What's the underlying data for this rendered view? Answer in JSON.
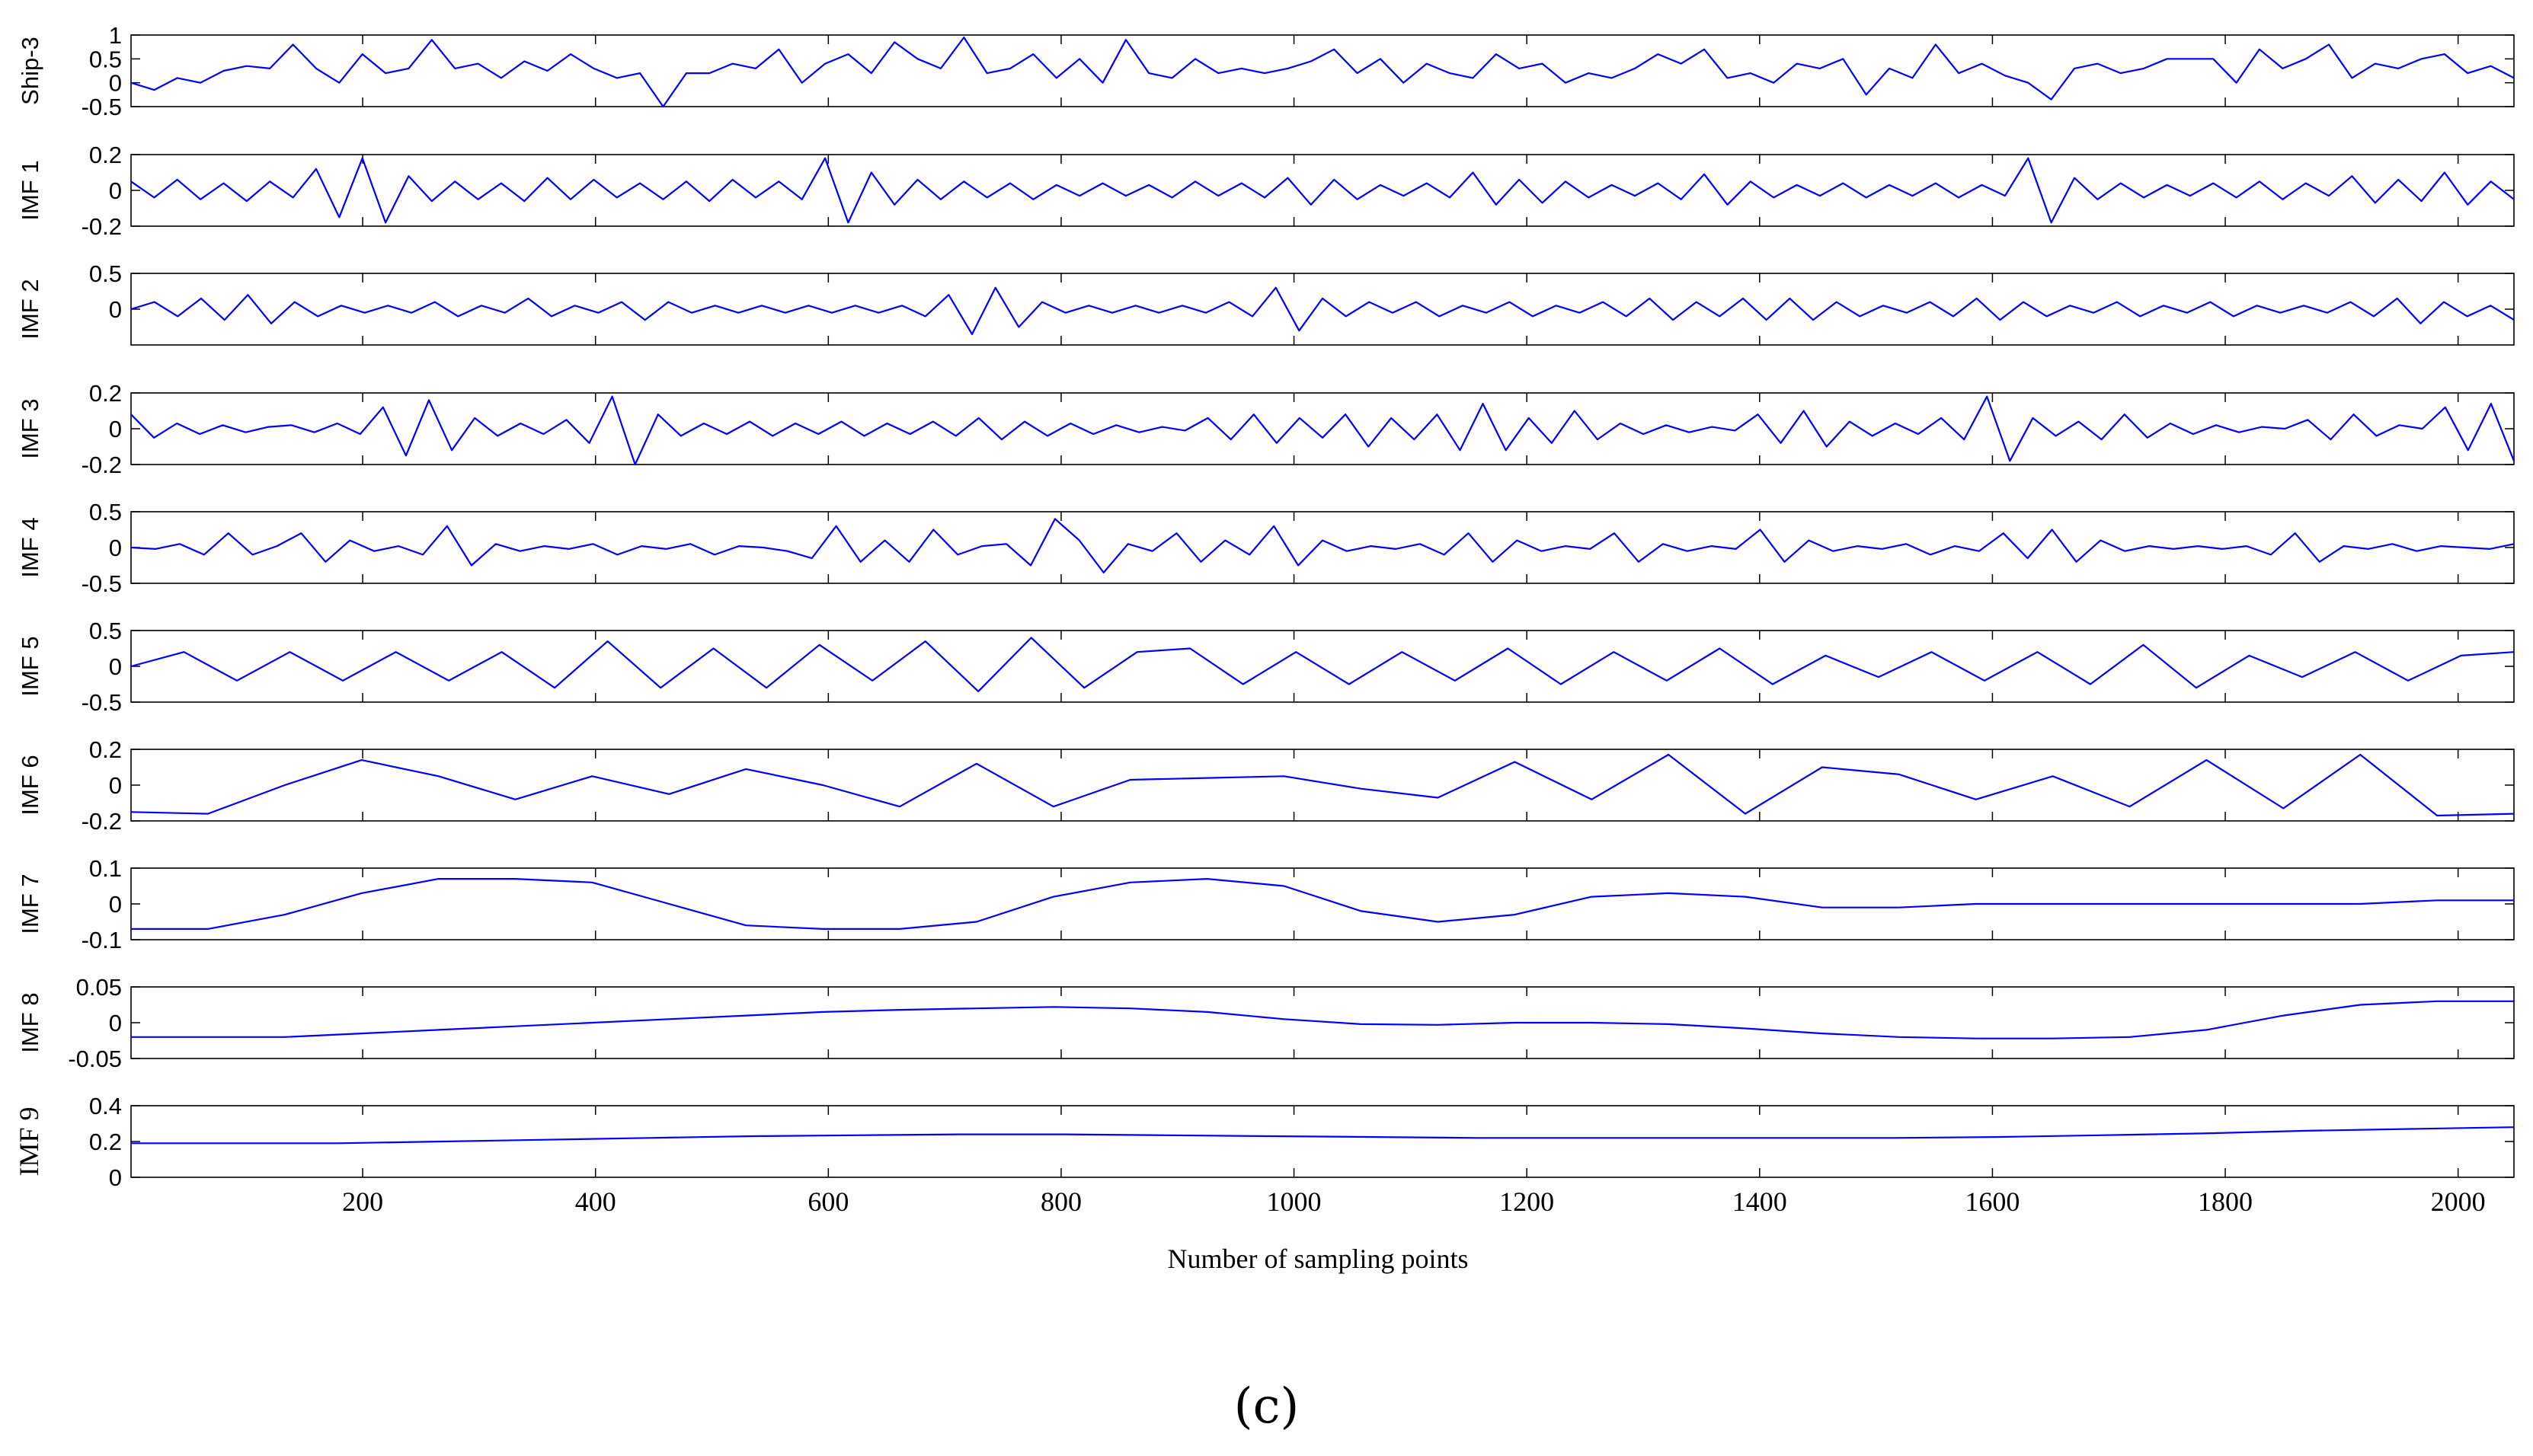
{
  "caption": "(c)",
  "chart_data": {
    "type": "line",
    "xlabel": "Number of sampling points",
    "xlim": [
      1,
      2048
    ],
    "x_ticks": [
      200,
      400,
      600,
      800,
      1000,
      1200,
      1400,
      1600,
      1800,
      2000
    ],
    "line_color": "#0000ff",
    "grid": false,
    "panels": [
      {
        "ylabel": "Ship-3",
        "ylim": [
          -0.5,
          1
        ],
        "yticks": [
          "1",
          "0.5",
          "0",
          "-0.5"
        ],
        "ytick_values": [
          1,
          0.5,
          0,
          -0.5
        ],
        "values": [
          0.0,
          -0.15,
          0.1,
          0.0,
          0.25,
          0.35,
          0.3,
          0.8,
          0.3,
          0.0,
          0.6,
          0.2,
          0.3,
          0.9,
          0.3,
          0.4,
          0.1,
          0.45,
          0.25,
          0.6,
          0.3,
          0.1,
          0.2,
          -0.55,
          0.2,
          0.2,
          0.4,
          0.3,
          0.7,
          0.0,
          0.4,
          0.6,
          0.2,
          0.85,
          0.5,
          0.3,
          0.95,
          0.2,
          0.3,
          0.6,
          0.1,
          0.5,
          0.0,
          0.9,
          0.2,
          0.1,
          0.5,
          0.2,
          0.3,
          0.2,
          0.3,
          0.45,
          0.7,
          0.2,
          0.5,
          0.0,
          0.4,
          0.2,
          0.1,
          0.6,
          0.3,
          0.4,
          0.0,
          0.2,
          0.1,
          0.3,
          0.6,
          0.4,
          0.7,
          0.1,
          0.2,
          0.0,
          0.4,
          0.3,
          0.5,
          -0.25,
          0.3,
          0.1,
          0.8,
          0.2,
          0.4,
          0.15,
          0.0,
          -0.35,
          0.3,
          0.4,
          0.2,
          0.3,
          0.5,
          0.5,
          0.5,
          0.0,
          0.7,
          0.3,
          0.5,
          0.8,
          0.1,
          0.4,
          0.3,
          0.5,
          0.6,
          0.2,
          0.35,
          0.1
        ]
      },
      {
        "ylabel": "IMF 1",
        "ylim": [
          -0.2,
          0.2
        ],
        "yticks": [
          "0.2",
          "0",
          "-0.2"
        ],
        "ytick_values": [
          0.2,
          0,
          -0.2
        ],
        "values": [
          0.05,
          -0.04,
          0.06,
          -0.05,
          0.04,
          -0.06,
          0.05,
          -0.04,
          0.12,
          -0.15,
          0.18,
          -0.18,
          0.08,
          -0.06,
          0.05,
          -0.05,
          0.04,
          -0.06,
          0.07,
          -0.05,
          0.06,
          -0.04,
          0.04,
          -0.05,
          0.05,
          -0.06,
          0.06,
          -0.04,
          0.05,
          -0.05,
          0.18,
          -0.18,
          0.1,
          -0.08,
          0.06,
          -0.05,
          0.05,
          -0.04,
          0.04,
          -0.05,
          0.03,
          -0.03,
          0.04,
          -0.03,
          0.03,
          -0.04,
          0.05,
          -0.03,
          0.04,
          -0.04,
          0.07,
          -0.08,
          0.06,
          -0.05,
          0.03,
          -0.03,
          0.04,
          -0.04,
          0.1,
          -0.08,
          0.06,
          -0.07,
          0.05,
          -0.04,
          0.03,
          -0.03,
          0.04,
          -0.05,
          0.09,
          -0.08,
          0.05,
          -0.04,
          0.03,
          -0.03,
          0.04,
          -0.04,
          0.03,
          -0.03,
          0.04,
          -0.04,
          0.03,
          -0.03,
          0.18,
          -0.18,
          0.07,
          -0.05,
          0.04,
          -0.04,
          0.03,
          -0.03,
          0.04,
          -0.04,
          0.05,
          -0.05,
          0.04,
          -0.03,
          0.08,
          -0.07,
          0.06,
          -0.06,
          0.1,
          -0.08,
          0.05,
          -0.05
        ]
      },
      {
        "ylabel": "IMF 2",
        "ylim": [
          -0.5,
          0.5
        ],
        "yticks": [
          "0.5",
          "0"
        ],
        "ytick_values": [
          0.5,
          0
        ],
        "values": [
          0.0,
          0.1,
          -0.1,
          0.15,
          -0.15,
          0.2,
          -0.2,
          0.1,
          -0.1,
          0.05,
          -0.05,
          0.05,
          -0.05,
          0.1,
          -0.1,
          0.05,
          -0.05,
          0.15,
          -0.1,
          0.05,
          -0.05,
          0.1,
          -0.15,
          0.1,
          -0.05,
          0.05,
          -0.05,
          0.05,
          -0.05,
          0.05,
          -0.05,
          0.05,
          -0.05,
          0.05,
          -0.1,
          0.2,
          -0.35,
          0.3,
          -0.25,
          0.1,
          -0.05,
          0.05,
          -0.05,
          0.05,
          -0.05,
          0.05,
          -0.05,
          0.1,
          -0.1,
          0.3,
          -0.3,
          0.15,
          -0.1,
          0.1,
          -0.05,
          0.1,
          -0.1,
          0.05,
          -0.05,
          0.1,
          -0.1,
          0.05,
          -0.05,
          0.1,
          -0.1,
          0.15,
          -0.15,
          0.1,
          -0.1,
          0.15,
          -0.15,
          0.15,
          -0.15,
          0.1,
          -0.1,
          0.05,
          -0.05,
          0.1,
          -0.1,
          0.15,
          -0.15,
          0.1,
          -0.1,
          0.05,
          -0.05,
          0.1,
          -0.1,
          0.05,
          -0.05,
          0.1,
          -0.1,
          0.05,
          -0.05,
          0.05,
          -0.05,
          0.1,
          -0.1,
          0.15,
          -0.2,
          0.1,
          -0.1,
          0.05,
          -0.15
        ]
      },
      {
        "ylabel": "IMF 3",
        "ylim": [
          -0.2,
          0.2
        ],
        "yticks": [
          "0.2",
          "0",
          "-0.2"
        ],
        "ytick_values": [
          0.2,
          0,
          -0.2
        ],
        "values": [
          0.08,
          -0.05,
          0.03,
          -0.03,
          0.02,
          -0.02,
          0.01,
          0.02,
          -0.02,
          0.03,
          -0.03,
          0.12,
          -0.15,
          0.16,
          -0.12,
          0.06,
          -0.04,
          0.03,
          -0.03,
          0.05,
          -0.08,
          0.18,
          -0.2,
          0.08,
          -0.04,
          0.03,
          -0.03,
          0.04,
          -0.04,
          0.03,
          -0.03,
          0.04,
          -0.04,
          0.03,
          -0.03,
          0.04,
          -0.04,
          0.06,
          -0.06,
          0.04,
          -0.04,
          0.03,
          -0.03,
          0.02,
          -0.02,
          0.01,
          -0.01,
          0.06,
          -0.06,
          0.08,
          -0.08,
          0.06,
          -0.05,
          0.08,
          -0.1,
          0.06,
          -0.06,
          0.08,
          -0.12,
          0.14,
          -0.12,
          0.06,
          -0.08,
          0.1,
          -0.06,
          0.03,
          -0.03,
          0.02,
          -0.02,
          0.01,
          -0.01,
          0.08,
          -0.08,
          0.1,
          -0.1,
          0.04,
          -0.04,
          0.03,
          -0.03,
          0.06,
          -0.06,
          0.18,
          -0.18,
          0.06,
          -0.04,
          0.04,
          -0.06,
          0.08,
          -0.05,
          0.03,
          -0.03,
          0.02,
          -0.02,
          0.01,
          0.0,
          0.05,
          -0.06,
          0.08,
          -0.04,
          0.02,
          0.0,
          0.12,
          -0.12,
          0.14,
          -0.18
        ]
      },
      {
        "ylabel": "IMF 4",
        "ylim": [
          -0.5,
          0.5
        ],
        "yticks": [
          "0.5",
          "0",
          "-0.5"
        ],
        "ytick_values": [
          0.5,
          0,
          -0.5
        ],
        "values": [
          0.0,
          -0.02,
          0.05,
          -0.1,
          0.2,
          -0.1,
          0.02,
          0.2,
          -0.2,
          0.1,
          -0.05,
          0.02,
          -0.1,
          0.3,
          -0.25,
          0.05,
          -0.05,
          0.02,
          -0.02,
          0.05,
          -0.1,
          0.02,
          -0.02,
          0.05,
          -0.1,
          0.02,
          0.0,
          -0.05,
          -0.15,
          0.3,
          -0.2,
          0.1,
          -0.2,
          0.25,
          -0.1,
          0.02,
          0.05,
          -0.25,
          0.4,
          0.1,
          -0.35,
          0.05,
          -0.05,
          0.2,
          -0.2,
          0.1,
          -0.1,
          0.3,
          -0.25,
          0.1,
          -0.05,
          0.02,
          -0.02,
          0.05,
          -0.1,
          0.2,
          -0.2,
          0.1,
          -0.05,
          0.02,
          -0.02,
          0.2,
          -0.2,
          0.05,
          -0.05,
          0.02,
          -0.02,
          0.25,
          -0.2,
          0.1,
          -0.05,
          0.02,
          -0.02,
          0.05,
          -0.1,
          0.02,
          -0.05,
          0.2,
          -0.15,
          0.25,
          -0.2,
          0.1,
          -0.05,
          0.02,
          -0.02,
          0.02,
          -0.02,
          0.02,
          -0.1,
          0.2,
          -0.2,
          0.02,
          -0.02,
          0.05,
          -0.05,
          0.02,
          0.0,
          -0.02,
          0.05
        ]
      },
      {
        "ylabel": "IMF 5",
        "ylim": [
          -0.5,
          0.5
        ],
        "yticks": [
          "0.5",
          "0",
          "-0.5"
        ],
        "ytick_values": [
          0.5,
          0,
          -0.5
        ],
        "values": [
          0.0,
          0.2,
          -0.2,
          0.2,
          -0.2,
          0.2,
          -0.2,
          0.2,
          -0.3,
          0.35,
          -0.3,
          0.25,
          -0.3,
          0.3,
          -0.2,
          0.35,
          -0.35,
          0.4,
          -0.3,
          0.2,
          0.25,
          -0.25,
          0.2,
          -0.25,
          0.2,
          -0.2,
          0.25,
          -0.25,
          0.2,
          -0.2,
          0.25,
          -0.25,
          0.15,
          -0.15,
          0.2,
          -0.2,
          0.2,
          -0.25,
          0.3,
          -0.3,
          0.15,
          -0.15,
          0.2,
          -0.2,
          0.15,
          0.2
        ]
      },
      {
        "ylabel": "IMF 6",
        "ylim": [
          -0.2,
          0.2
        ],
        "yticks": [
          "0.2",
          "0",
          "-0.2"
        ],
        "ytick_values": [
          0.2,
          0,
          -0.2
        ],
        "values": [
          -0.15,
          -0.16,
          0.0,
          0.14,
          0.05,
          -0.08,
          0.05,
          -0.05,
          0.09,
          0.0,
          -0.12,
          0.12,
          -0.12,
          0.03,
          0.04,
          0.05,
          -0.02,
          -0.07,
          0.13,
          -0.08,
          0.17,
          -0.16,
          0.1,
          0.06,
          -0.08,
          0.05,
          -0.12,
          0.14,
          -0.13,
          0.17,
          -0.17,
          -0.16
        ]
      },
      {
        "ylabel": "IMF 7",
        "ylim": [
          -0.1,
          0.1
        ],
        "yticks": [
          "0.1",
          "0",
          "-0.1"
        ],
        "ytick_values": [
          0.1,
          0,
          -0.1
        ],
        "values": [
          -0.07,
          -0.07,
          -0.03,
          0.03,
          0.07,
          0.07,
          0.06,
          0.0,
          -0.06,
          -0.07,
          -0.07,
          -0.05,
          0.02,
          0.06,
          0.07,
          0.05,
          -0.02,
          -0.05,
          -0.03,
          0.02,
          0.03,
          0.02,
          -0.01,
          -0.01,
          0.0,
          0.0,
          0.0,
          0.0,
          0.0,
          0.0,
          0.01,
          0.01
        ]
      },
      {
        "ylabel": "IMF 8",
        "ylim": [
          -0.05,
          0.05
        ],
        "yticks": [
          "0.05",
          "0",
          "-0.05"
        ],
        "ytick_values": [
          0.05,
          0,
          -0.05
        ],
        "values": [
          -0.02,
          -0.02,
          -0.02,
          -0.015,
          -0.01,
          -0.005,
          0.0,
          0.005,
          0.01,
          0.015,
          0.018,
          0.02,
          0.022,
          0.02,
          0.015,
          0.005,
          -0.002,
          -0.003,
          0.0,
          0.0,
          -0.002,
          -0.008,
          -0.015,
          -0.02,
          -0.022,
          -0.022,
          -0.02,
          -0.01,
          0.01,
          0.025,
          0.03,
          0.03
        ]
      },
      {
        "ylabel": "IMF 9",
        "ylim": [
          0,
          0.4
        ],
        "yticks": [
          "0.4",
          "0.2",
          "0"
        ],
        "ytick_values": [
          0.4,
          0.2,
          0
        ],
        "values": [
          0.19,
          0.19,
          0.19,
          0.2,
          0.21,
          0.22,
          0.23,
          0.235,
          0.24,
          0.24,
          0.235,
          0.23,
          0.225,
          0.22,
          0.22,
          0.22,
          0.22,
          0.22,
          0.225,
          0.235,
          0.245,
          0.26,
          0.27,
          0.28
        ]
      }
    ]
  }
}
